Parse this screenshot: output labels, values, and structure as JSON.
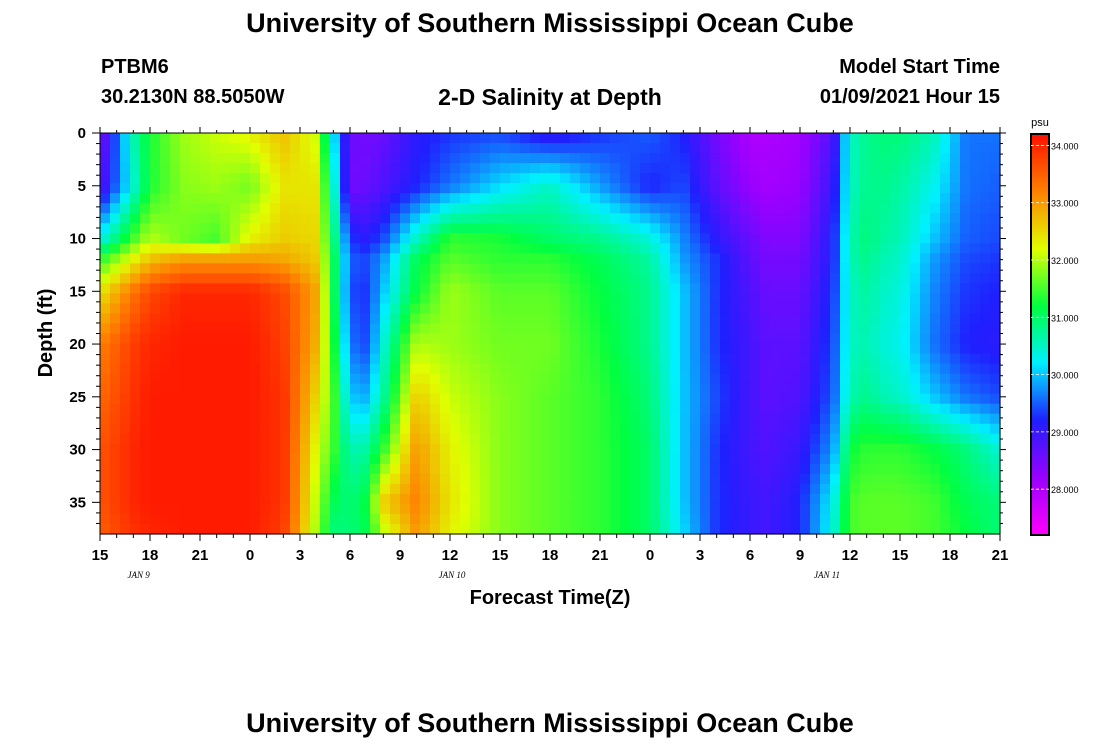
{
  "header": {
    "title": "University of Southern Mississippi Ocean Cube",
    "station_id": "PTBM6",
    "coordinates": "30.2130N 88.5050W",
    "plot_title": "2-D Salinity at Depth",
    "model_start_label": "Model Start Time",
    "model_start_time": "01/09/2021 Hour 15"
  },
  "footer": {
    "title": "University of Southern Mississippi Ocean Cube"
  },
  "chart_data": {
    "type": "heatmap",
    "xlabel": "Forecast Time(Z)",
    "ylabel": "Depth (ft)",
    "x_ticks": [
      "15",
      "18",
      "21",
      "0",
      "3",
      "6",
      "9",
      "12",
      "15",
      "18",
      "21",
      "0",
      "3",
      "6",
      "9",
      "12",
      "15",
      "18",
      "21"
    ],
    "date_labels": [
      {
        "label": "JAN 9",
        "hour_index": 2.2
      },
      {
        "label": "JAN 10",
        "hour_index": 21
      },
      {
        "label": "JAN 11",
        "hour_index": 43.5
      }
    ],
    "x_range_hours": [
      0,
      54
    ],
    "y_ticks": [
      0,
      5,
      10,
      15,
      20,
      25,
      30,
      35
    ],
    "ylim": [
      0,
      38
    ],
    "y_inverted": true,
    "colorbar": {
      "unit": "psu",
      "min": 27.2,
      "max": 34.2,
      "tick_values": [
        34,
        33,
        32,
        31,
        30,
        29,
        28
      ],
      "tick_labels": [
        "34.000",
        "33.000",
        "32.000",
        "31.000",
        "30.000",
        "29.000",
        "28.000"
      ],
      "colors": [
        "#ff00ff",
        "#9900ff",
        "#1f1fff",
        "#00f0ff",
        "#00ff40",
        "#e0ff00",
        "#ff8000",
        "#ff1000"
      ]
    },
    "salinity_grid": {
      "hours": [
        0,
        2,
        3,
        5,
        7,
        9,
        11,
        13,
        14,
        15,
        16,
        17,
        19,
        21,
        24,
        27,
        30,
        33,
        35,
        37,
        39,
        40,
        42,
        44,
        45,
        46,
        47,
        48,
        50,
        52,
        54
      ],
      "depths_ft": [
        0,
        5,
        10,
        12,
        15,
        20,
        25,
        30,
        35,
        38
      ],
      "values": [
        [
          28.4,
          30.6,
          31.3,
          31.9,
          32.1,
          32.3,
          32.7,
          32.1,
          30.2,
          28.6,
          28.5,
          28.6,
          29.1,
          29.3,
          29.4,
          29.0,
          29.3,
          29.5,
          29.2,
          28.5,
          28.0,
          28.0,
          28.1,
          28.8,
          30.5,
          30.8,
          30.9,
          30.9,
          30.6,
          29.6,
          29.6
        ],
        [
          28.7,
          30.4,
          31.3,
          31.8,
          31.9,
          31.7,
          32.4,
          32.4,
          30.6,
          28.5,
          28.6,
          28.8,
          29.2,
          29.6,
          30.1,
          30.5,
          29.8,
          29.2,
          29.4,
          28.7,
          28.2,
          28.1,
          28.2,
          29.0,
          30.5,
          30.8,
          30.8,
          30.7,
          30.3,
          29.6,
          29.5
        ],
        [
          30.3,
          31.5,
          32.0,
          31.7,
          31.5,
          32.3,
          32.6,
          32.5,
          31.0,
          29.3,
          29.1,
          29.4,
          30.5,
          31.4,
          31.3,
          31.0,
          30.8,
          30.4,
          29.7,
          29.1,
          28.6,
          28.4,
          28.4,
          29.2,
          30.6,
          30.9,
          30.7,
          30.6,
          30.0,
          29.5,
          29.4
        ],
        [
          31.4,
          32.3,
          32.7,
          33.0,
          33.0,
          33.0,
          32.9,
          32.6,
          31.2,
          29.5,
          29.4,
          29.8,
          31.1,
          31.6,
          31.4,
          31.4,
          31.1,
          30.7,
          29.8,
          29.3,
          28.7,
          28.5,
          28.5,
          29.2,
          30.6,
          30.8,
          30.6,
          30.5,
          29.8,
          29.4,
          29.3
        ],
        [
          32.4,
          33.3,
          33.7,
          34.0,
          34.0,
          34.0,
          33.7,
          32.9,
          31.2,
          29.4,
          29.3,
          30.0,
          31.2,
          31.9,
          31.6,
          31.6,
          31.2,
          30.8,
          30.0,
          29.3,
          28.8,
          28.6,
          28.6,
          29.3,
          30.5,
          30.7,
          30.5,
          30.4,
          29.7,
          29.3,
          29.2
        ],
        [
          33.2,
          33.8,
          34.0,
          34.1,
          34.1,
          34.1,
          33.8,
          32.8,
          31.4,
          29.6,
          29.4,
          30.4,
          32.0,
          31.9,
          31.7,
          31.7,
          31.3,
          30.8,
          30.0,
          29.3,
          28.9,
          28.7,
          28.7,
          29.4,
          30.5,
          30.6,
          30.4,
          30.3,
          29.6,
          29.2,
          29.1
        ],
        [
          33.4,
          33.9,
          34.1,
          34.1,
          34.1,
          34.1,
          33.9,
          32.5,
          31.6,
          30.0,
          29.9,
          30.7,
          32.6,
          32.1,
          31.8,
          31.6,
          31.4,
          30.9,
          30.0,
          29.4,
          28.9,
          28.7,
          28.8,
          29.5,
          30.6,
          30.8,
          30.6,
          30.5,
          30.0,
          29.6,
          29.4
        ],
        [
          33.6,
          34.0,
          34.1,
          34.1,
          34.1,
          34.1,
          33.9,
          32.2,
          31.5,
          30.6,
          30.7,
          31.4,
          33.0,
          32.3,
          31.8,
          31.6,
          31.4,
          31.0,
          30.0,
          29.3,
          28.9,
          28.8,
          29.0,
          29.8,
          31.2,
          31.4,
          31.4,
          31.4,
          31.2,
          30.9,
          30.4
        ],
        [
          33.6,
          34.0,
          34.1,
          34.1,
          34.1,
          34.1,
          33.9,
          32.0,
          31.1,
          30.9,
          31.2,
          32.6,
          33.2,
          32.4,
          31.8,
          31.6,
          31.4,
          31.0,
          30.0,
          29.3,
          29.0,
          28.9,
          29.2,
          30.3,
          31.5,
          31.6,
          31.6,
          31.6,
          31.5,
          31.1,
          30.9
        ],
        [
          33.5,
          33.9,
          34.0,
          34.1,
          34.1,
          34.1,
          33.8,
          31.9,
          30.9,
          30.9,
          31.1,
          32.0,
          33.0,
          32.3,
          31.8,
          31.6,
          31.4,
          31.0,
          30.1,
          29.3,
          29.0,
          28.9,
          29.2,
          30.4,
          31.5,
          31.6,
          31.6,
          31.6,
          31.5,
          31.2,
          30.9
        ]
      ]
    }
  }
}
